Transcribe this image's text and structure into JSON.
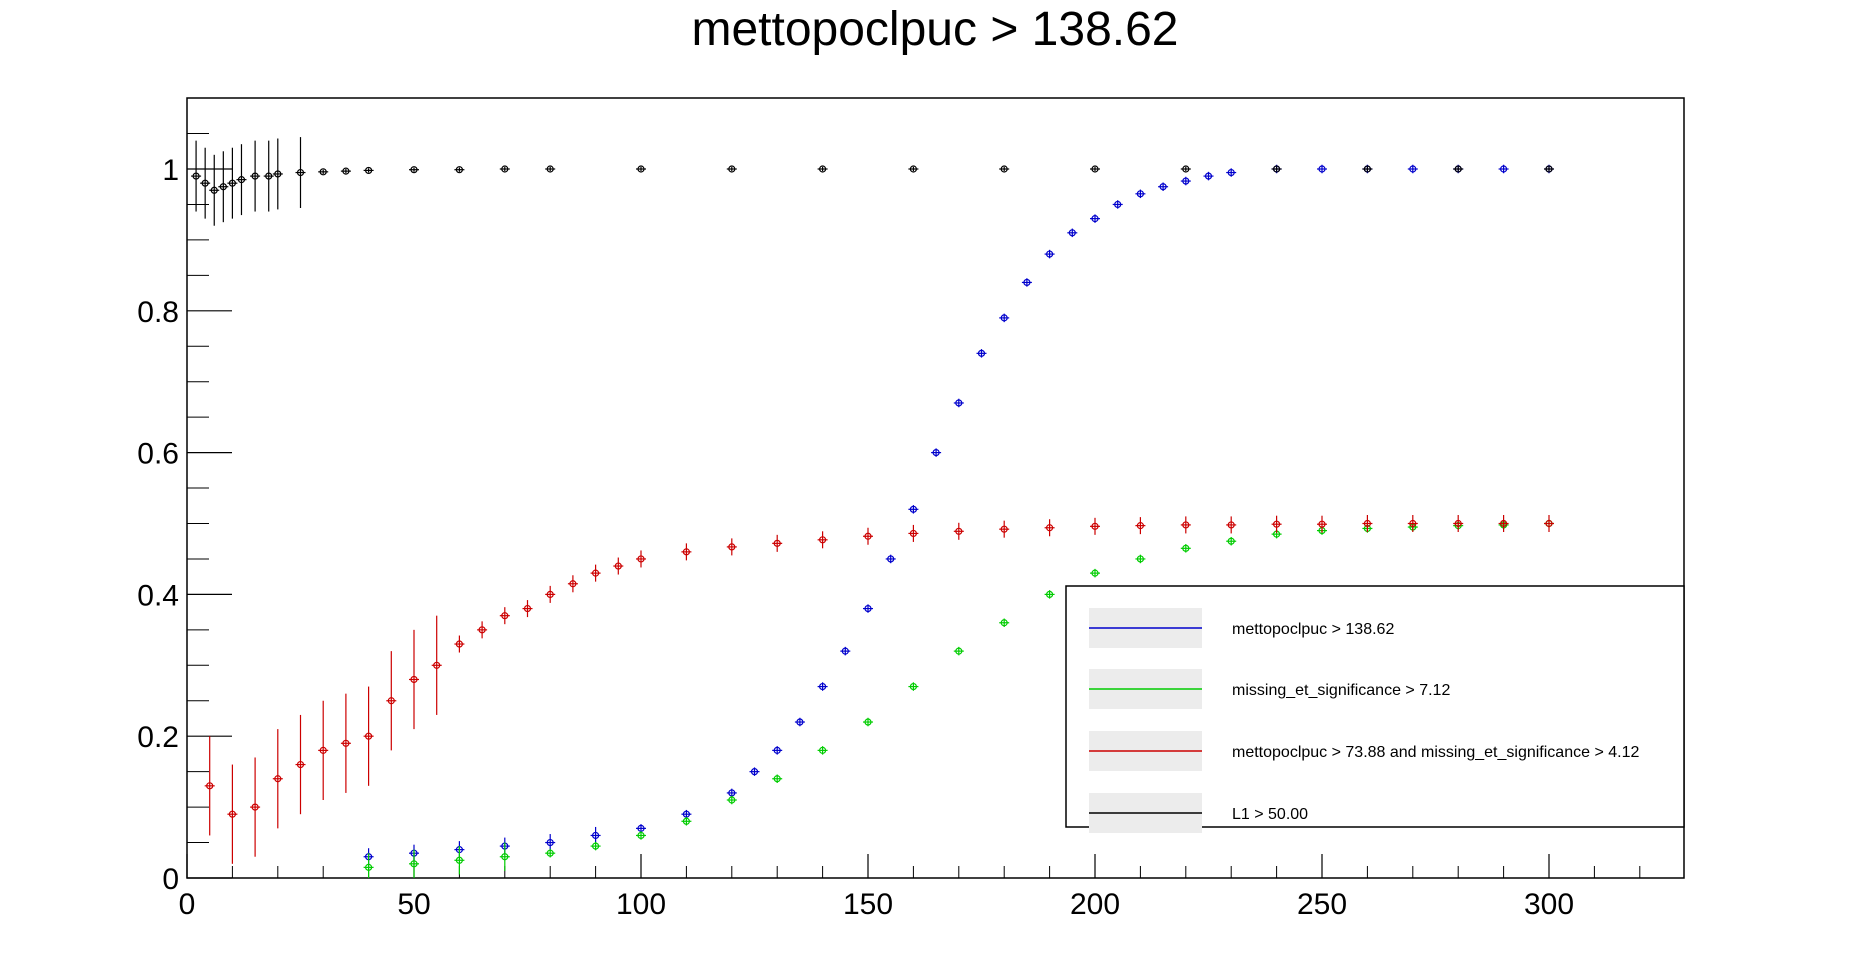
{
  "chart_data": {
    "type": "scatter",
    "title": "mettopoclpuc >  138.62",
    "xlabel": "",
    "ylabel": "",
    "xlim": [
      0,
      330
    ],
    "ylim": [
      0,
      1.1
    ],
    "x_ticks": [
      "0",
      "50",
      "100",
      "150",
      "200",
      "250",
      "300"
    ],
    "y_ticks": [
      "0",
      "0.2",
      "0.4",
      "0.6",
      "0.8",
      "1"
    ],
    "grid": false,
    "legend_position": "bottom-right",
    "series": [
      {
        "name": "mettopoclpuc >  138.62",
        "color": "#0000cc",
        "x": [
          40,
          50,
          60,
          70,
          80,
          90,
          100,
          110,
          120,
          125,
          130,
          135,
          140,
          145,
          150,
          155,
          160,
          165,
          170,
          175,
          180,
          185,
          190,
          195,
          200,
          205,
          210,
          215,
          220,
          225,
          230,
          240,
          250,
          260,
          270,
          280,
          290,
          300
        ],
        "y": [
          0.03,
          0.035,
          0.04,
          0.045,
          0.05,
          0.06,
          0.07,
          0.09,
          0.12,
          0.15,
          0.18,
          0.22,
          0.27,
          0.32,
          0.38,
          0.45,
          0.52,
          0.6,
          0.67,
          0.74,
          0.79,
          0.84,
          0.88,
          0.91,
          0.93,
          0.95,
          0.965,
          0.975,
          0.983,
          0.99,
          0.995,
          1.0,
          1.0,
          1.0,
          1.0,
          1.0,
          1.0,
          1.0
        ]
      },
      {
        "name": "missing_et_significance >  7.12",
        "color": "#00cc00",
        "x": [
          40,
          50,
          60,
          70,
          80,
          90,
          100,
          110,
          120,
          130,
          140,
          150,
          160,
          170,
          180,
          190,
          200,
          210,
          220,
          230,
          240,
          250,
          260,
          270,
          280,
          290,
          300
        ],
        "y": [
          0.015,
          0.02,
          0.025,
          0.03,
          0.035,
          0.045,
          0.06,
          0.08,
          0.11,
          0.14,
          0.18,
          0.22,
          0.27,
          0.32,
          0.36,
          0.4,
          0.43,
          0.45,
          0.465,
          0.475,
          0.485,
          0.49,
          0.493,
          0.495,
          0.497,
          0.498,
          0.5
        ]
      },
      {
        "name": "mettopoclpuc >  73.88 and missing_et_significance >  4.12",
        "color": "#cc0000",
        "x": [
          5,
          10,
          15,
          20,
          25,
          30,
          35,
          40,
          45,
          50,
          55,
          60,
          65,
          70,
          75,
          80,
          85,
          90,
          95,
          100,
          110,
          120,
          130,
          140,
          150,
          160,
          170,
          180,
          190,
          200,
          210,
          220,
          230,
          240,
          250,
          260,
          270,
          280,
          290,
          300
        ],
        "y": [
          0.13,
          0.09,
          0.1,
          0.14,
          0.16,
          0.18,
          0.19,
          0.2,
          0.25,
          0.28,
          0.3,
          0.33,
          0.35,
          0.37,
          0.38,
          0.4,
          0.415,
          0.43,
          0.44,
          0.45,
          0.46,
          0.467,
          0.472,
          0.477,
          0.482,
          0.486,
          0.489,
          0.492,
          0.494,
          0.496,
          0.497,
          0.498,
          0.498,
          0.499,
          0.499,
          0.5,
          0.5,
          0.5,
          0.5,
          0.5
        ]
      },
      {
        "name": "L1 >  50.00",
        "color": "#000000",
        "x": [
          2,
          4,
          6,
          8,
          10,
          12,
          15,
          18,
          20,
          25,
          30,
          35,
          40,
          50,
          60,
          70,
          80,
          100,
          120,
          140,
          160,
          180,
          200,
          220,
          240,
          260,
          280,
          300
        ],
        "y": [
          0.99,
          0.98,
          0.97,
          0.975,
          0.98,
          0.985,
          0.99,
          0.99,
          0.993,
          0.995,
          0.996,
          0.997,
          0.998,
          0.999,
          0.999,
          1.0,
          1.0,
          1.0,
          1.0,
          1.0,
          1.0,
          1.0,
          1.0,
          1.0,
          1.0,
          1.0,
          1.0,
          1.0
        ]
      }
    ]
  },
  "legend": {
    "entries": [
      "mettopoclpuc >  138.62",
      "missing_et_significance >  7.12",
      "mettopoclpuc >  73.88 and missing_et_significance >  4.12",
      "L1 >  50.00"
    ]
  }
}
